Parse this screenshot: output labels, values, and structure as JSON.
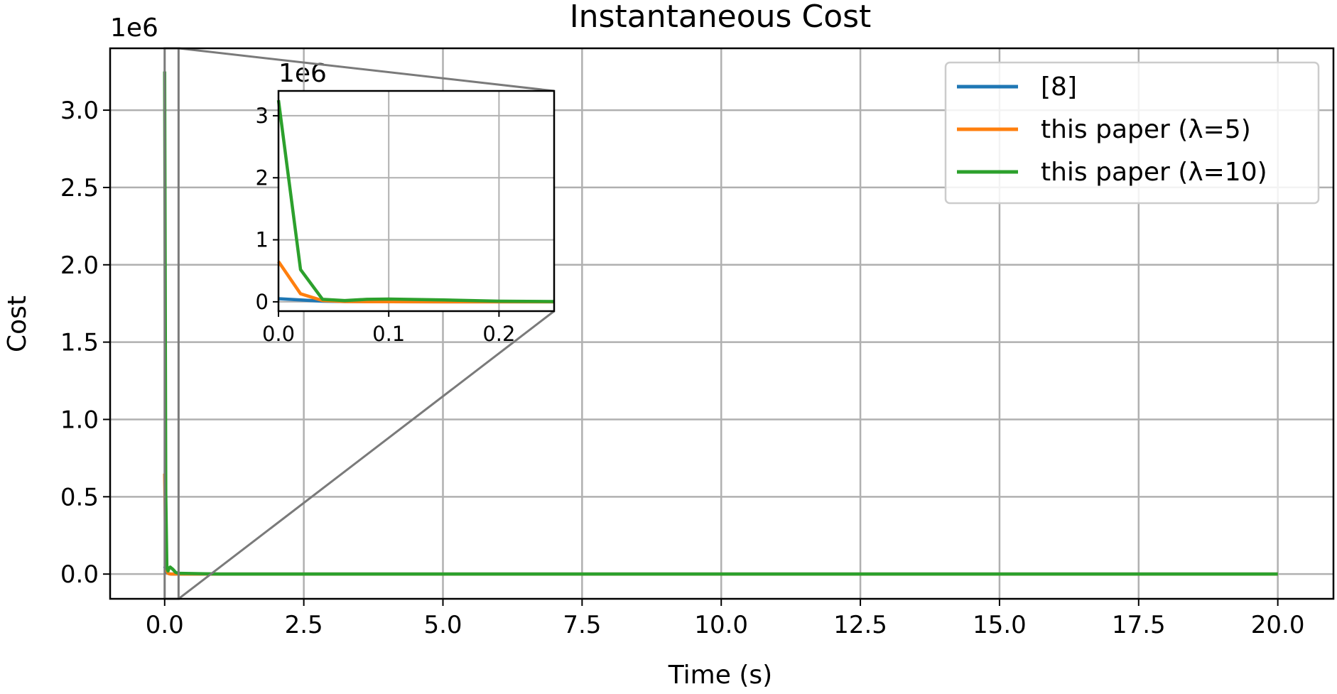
{
  "chart_data": {
    "type": "line",
    "title": "Instantaneous Cost",
    "xlabel": "Time (s)",
    "ylabel": "Cost",
    "offset_label": "1e6",
    "xlim": [
      -0.98,
      21.0
    ],
    "ylim": [
      -0.16,
      3.4
    ],
    "x_ticks": [
      0.0,
      2.5,
      5.0,
      7.5,
      10.0,
      12.5,
      15.0,
      17.5,
      20.0
    ],
    "x_tick_labels": [
      "0.0",
      "2.5",
      "5.0",
      "7.5",
      "10.0",
      "12.5",
      "15.0",
      "17.5",
      "20.0"
    ],
    "y_ticks": [
      0.0,
      0.5,
      1.0,
      1.5,
      2.0,
      2.5,
      3.0
    ],
    "y_tick_labels": [
      "0.0",
      "0.5",
      "1.0",
      "1.5",
      "2.0",
      "2.5",
      "3.0"
    ],
    "grid": true,
    "legend_position": "top-right",
    "series": [
      {
        "name": "[8]",
        "color": "#1f77b4",
        "x": [
          0,
          0.02,
          0.04,
          0.06,
          0.08,
          0.1,
          0.15,
          0.2,
          0.25,
          1,
          5,
          10,
          15,
          20
        ],
        "y": [
          0.05,
          0.03,
          0.01,
          0.005,
          0.002,
          0.001,
          0.0,
          0.0,
          0.0,
          0.0,
          0.0,
          0.0,
          0.0,
          0.0
        ]
      },
      {
        "name": "this paper (λ=5)",
        "color": "#ff7f0e",
        "x": [
          0,
          0.02,
          0.04,
          0.06,
          0.08,
          0.1,
          0.15,
          0.2,
          0.25,
          1,
          5,
          10,
          15,
          20
        ],
        "y": [
          0.65,
          0.13,
          0.02,
          0.005,
          0.002,
          0.001,
          0.0,
          0.0,
          0.0,
          0.0,
          0.0,
          0.0,
          0.0,
          0.0
        ]
      },
      {
        "name": "this paper (λ=10)",
        "color": "#2ca02c",
        "x": [
          0,
          0.02,
          0.04,
          0.06,
          0.08,
          0.1,
          0.15,
          0.2,
          0.25,
          1,
          5,
          10,
          15,
          20
        ],
        "y": [
          3.25,
          0.52,
          0.04,
          0.02,
          0.04,
          0.045,
          0.03,
          0.01,
          0.005,
          0.0,
          0.0,
          0.0,
          0.0,
          0.0
        ]
      }
    ],
    "inset": {
      "xlim": [
        0.0,
        0.25
      ],
      "ylim": [
        -0.15,
        3.4
      ],
      "x_ticks": [
        0.0,
        0.1,
        0.2
      ],
      "x_tick_labels": [
        "0.0",
        "0.1",
        "0.2"
      ],
      "y_ticks": [
        0,
        1,
        2,
        3
      ],
      "y_tick_labels": [
        "0",
        "1",
        "2",
        "3"
      ],
      "offset_label": "1e6",
      "grid": true
    }
  }
}
